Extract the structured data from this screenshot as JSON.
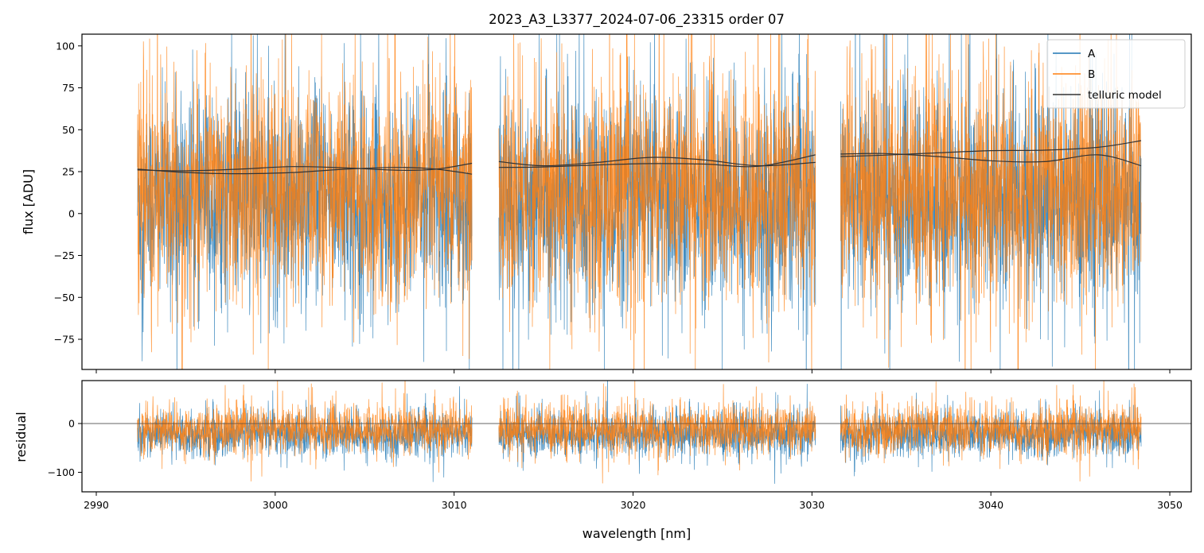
{
  "chart_data": [
    {
      "type": "line",
      "panel": "top",
      "title": "2023_A3_L3377_2024-07-06_23315  order 07",
      "xlabel": "",
      "ylabel": "flux [ADU]",
      "xlim": [
        2989.2,
        3051.2
      ],
      "ylim": [
        -93,
        107
      ],
      "x_ticks": [
        2990,
        3000,
        3010,
        3020,
        3030,
        3040,
        3050
      ],
      "y_ticks": [
        -75,
        -50,
        -25,
        0,
        25,
        50,
        75,
        100
      ],
      "y_tick_labels": [
        "−75",
        "−50",
        "−25",
        "0",
        "25",
        "50",
        "75",
        "100"
      ],
      "grid": false,
      "legend_position": "top-right",
      "segments": [
        [
          2992.3,
          3011.0
        ],
        [
          3012.5,
          3030.2
        ],
        [
          3031.6,
          3048.4
        ]
      ],
      "series": [
        {
          "name": "A",
          "color": "#1f77b4",
          "center": 8,
          "spread": 30
        },
        {
          "name": "B",
          "color": "#ff7f0e",
          "center": 14,
          "spread": 32
        },
        {
          "name": "telluric model",
          "color": "#333333",
          "curves": [
            {
              "x": [
                2992.3,
                2995,
                2998,
                3001,
                3004,
                3007,
                3009,
                3011.0
              ],
              "y": [
                26.5,
                24.5,
                23.8,
                24.5,
                26.5,
                27.5,
                26.5,
                23.5
              ]
            },
            {
              "x": [
                2992.3,
                2995,
                2998,
                3001,
                3004,
                3007,
                3009,
                3011.0
              ],
              "y": [
                26.0,
                25.5,
                26.5,
                28.0,
                27.2,
                25.8,
                26.5,
                30.0
              ]
            },
            {
              "x": [
                3012.5,
                3015,
                3018,
                3021,
                3024,
                3027,
                3030.2
              ],
              "y": [
                31.0,
                28.5,
                30.5,
                33.5,
                32.0,
                28.5,
                30.5
              ]
            },
            {
              "x": [
                3012.5,
                3015,
                3018,
                3021,
                3024,
                3027,
                3030.2
              ],
              "y": [
                27.5,
                27.8,
                29.0,
                29.8,
                29.5,
                28.2,
                35.0
              ]
            },
            {
              "x": [
                3031.6,
                3034,
                3037,
                3040,
                3043,
                3046,
                3048.4
              ],
              "y": [
                35.5,
                35.8,
                34.0,
                31.5,
                31.0,
                35.0,
                28.5
              ]
            },
            {
              "x": [
                3031.6,
                3034,
                3037,
                3040,
                3043,
                3046,
                3048.4
              ],
              "y": [
                34.0,
                34.8,
                36.2,
                37.5,
                37.8,
                39.5,
                43.5
              ]
            }
          ]
        }
      ]
    },
    {
      "type": "line",
      "panel": "bottom",
      "title": "",
      "xlabel": "wavelength [nm]",
      "ylabel": "residual",
      "xlim": [
        2989.2,
        3051.2
      ],
      "ylim": [
        -140,
        88
      ],
      "x_ticks": [
        2990,
        3000,
        3010,
        3020,
        3030,
        3040,
        3050
      ],
      "x_tick_labels": [
        "2990",
        "3000",
        "3010",
        "3020",
        "3030",
        "3040",
        "3050"
      ],
      "y_ticks": [
        -100,
        0
      ],
      "y_tick_labels": [
        "−100",
        "0"
      ],
      "reference_line": 0,
      "segments": [
        [
          2992.3,
          3011.0
        ],
        [
          3012.5,
          3030.2
        ],
        [
          3031.6,
          3048.4
        ]
      ],
      "series": [
        {
          "name": "A",
          "color": "#1f77b4",
          "center": -22,
          "spread": 22
        },
        {
          "name": "B",
          "color": "#ff7f0e",
          "center": -12,
          "spread": 24
        }
      ]
    }
  ]
}
